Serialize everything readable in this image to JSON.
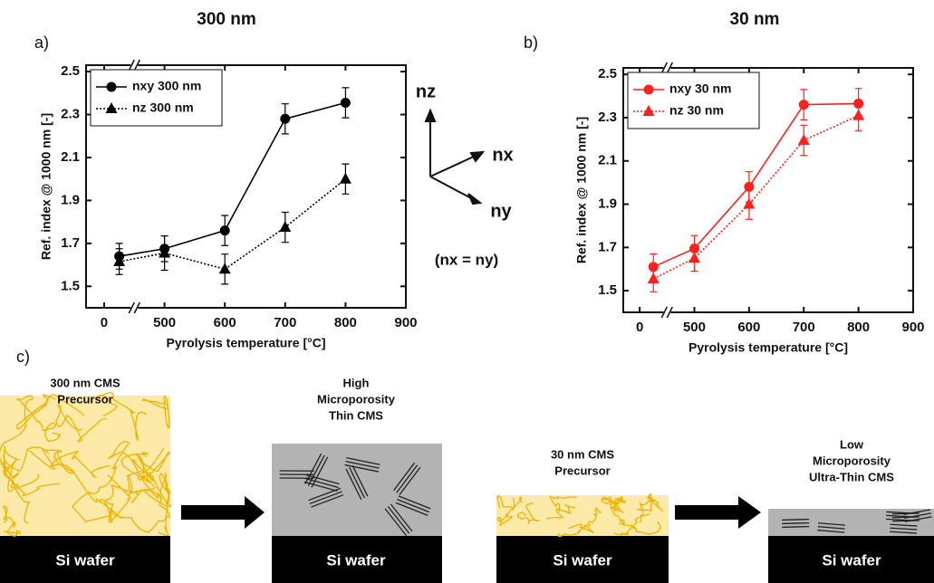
{
  "chart_data": [
    {
      "type": "line",
      "title": "300 nm",
      "panel": "a)",
      "x_label": "Pyrolysis temperature [°C]",
      "y_label": "Ref. index @ 1000 nm [-]",
      "x": [
        25,
        500,
        600,
        700,
        800
      ],
      "xlim": [
        -30,
        900
      ],
      "xticks": [
        0,
        500,
        600,
        700,
        800,
        900
      ],
      "xbreak": [
        50,
        450
      ],
      "ylim": [
        1.4,
        2.53
      ],
      "yticks": [
        1.5,
        1.7,
        1.9,
        2.1,
        2.3,
        2.5
      ],
      "legend": "upper left",
      "series": [
        {
          "name": "nxy 300 nm",
          "color": "#000000",
          "marker": "circle",
          "linestyle": "solid",
          "values": [
            1.64,
            1.675,
            1.76,
            2.28,
            2.355
          ],
          "errors": [
            0.06,
            0.06,
            0.07,
            0.07,
            0.07
          ]
        },
        {
          "name": "nz 300 nm",
          "color": "#000000",
          "marker": "triangle",
          "linestyle": "dotted",
          "values": [
            1.615,
            1.655,
            1.58,
            1.775,
            2.0
          ],
          "errors": [
            0.06,
            0.08,
            0.07,
            0.07,
            0.07
          ]
        }
      ]
    },
    {
      "type": "line",
      "title": "30 nm",
      "panel": "b)",
      "x_label": "Pyrolysis temperature [°C]",
      "y_label": "Ref. index @ 1000 nm [-]",
      "x": [
        25,
        500,
        600,
        700,
        800
      ],
      "xlim": [
        -30,
        900
      ],
      "xticks": [
        0,
        500,
        600,
        700,
        800,
        900
      ],
      "xbreak": [
        50,
        450
      ],
      "ylim": [
        1.4,
        2.53
      ],
      "yticks": [
        1.5,
        1.7,
        1.9,
        2.1,
        2.3,
        2.5
      ],
      "legend": "upper left",
      "series": [
        {
          "name": "nxy 30 nm",
          "color": "#ff2020",
          "marker": "circle",
          "linestyle": "solid",
          "values": [
            1.61,
            1.695,
            1.98,
            2.36,
            2.365
          ],
          "errors": [
            0.06,
            0.06,
            0.07,
            0.07,
            0.07
          ]
        },
        {
          "name": "nz 30 nm",
          "color": "#ff2020",
          "marker": "triangle",
          "linestyle": "dotted",
          "values": [
            1.555,
            1.65,
            1.9,
            2.195,
            2.31
          ],
          "errors": [
            0.06,
            0.06,
            0.07,
            0.07,
            0.07
          ]
        }
      ]
    }
  ],
  "axes_diagram": {
    "z": "nz",
    "x": "nx",
    "y": "ny",
    "note": "(nx = ny)"
  },
  "schematic": {
    "panel": "c)",
    "stages": [
      {
        "caption": [
          "300 nm CMS",
          "Precursor"
        ],
        "substrate": "Si wafer"
      },
      {
        "caption": [
          "High",
          "Microporosity",
          "Thin CMS"
        ],
        "substrate": "Si wafer"
      },
      {
        "caption": [
          "30 nm CMS",
          "Precursor"
        ],
        "substrate": "Si wafer"
      },
      {
        "caption": [
          "Low",
          "Microporosity",
          "Ultra-Thin CMS"
        ],
        "substrate": "Si wafer"
      }
    ]
  }
}
